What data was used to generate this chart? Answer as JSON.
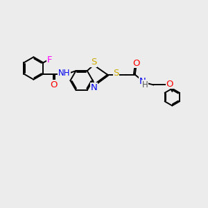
{
  "bg_color": "#ececec",
  "bond_color": "#000000",
  "atom_colors": {
    "F": "#ff00ff",
    "O": "#ff0000",
    "N": "#0000ee",
    "S": "#ccaa00",
    "NH": "#0000ee",
    "H": "#555555"
  },
  "lw": 1.4,
  "fs": 8.5,
  "xlim": [
    0,
    10
  ],
  "ylim": [
    0,
    10
  ]
}
